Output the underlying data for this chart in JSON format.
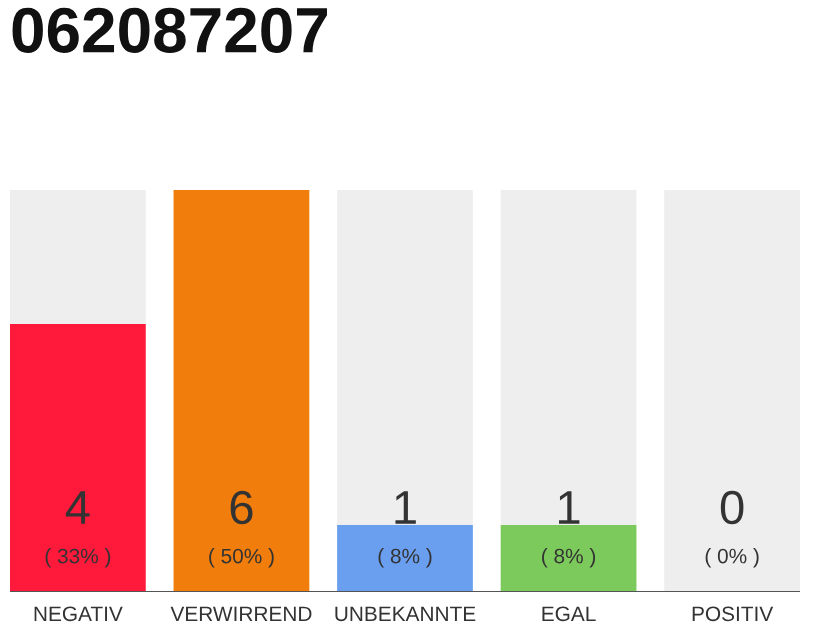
{
  "chart_data": {
    "type": "bar",
    "title": "062087207",
    "stacked": true,
    "categories": [
      "NEGATIV",
      "VERWIRREND",
      "UNBEKANNTE",
      "EGAL",
      "POSITIV"
    ],
    "series": [
      {
        "colors": [
          "#ff1a3c",
          "#f07d0c",
          "#6a9ff0",
          "#7cca5c",
          "#7cca5c"
        ],
        "values": [
          4,
          6,
          1,
          1,
          0
        ],
        "value_labels": [
          "4",
          "6",
          "1",
          "1",
          null
        ]
      },
      {
        "color": "#eeeeee",
        "values": [
          2,
          0,
          5,
          5,
          6
        ]
      }
    ],
    "ylim": [
      0,
      6
    ],
    "tick_labels": "x",
    "grid": false,
    "legend": false,
    "annotations": [
      {
        "text": "( 33% )",
        "x": "NEGATIV",
        "y": 0
      },
      {
        "text": "( 50% )",
        "x": "VERWIRREND",
        "y": 0
      },
      {
        "text": "( 8% )",
        "x": "UNBEKANNTE",
        "y": 0
      },
      {
        "text": "( 8% )",
        "x": "EGAL",
        "y": 0
      },
      {
        "text": "( 0% )",
        "x": "POSITIV",
        "y": 0
      },
      "0"
    ]
  }
}
